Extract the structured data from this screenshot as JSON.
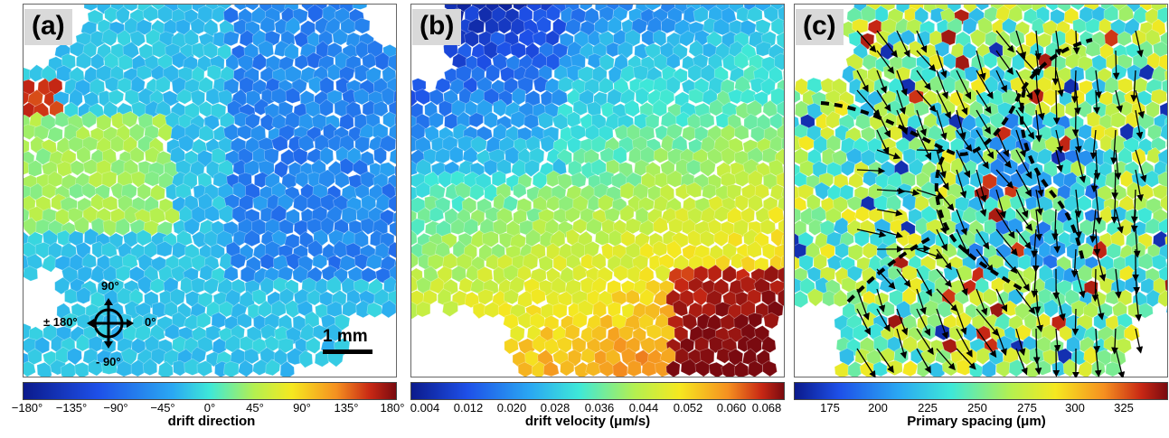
{
  "panels": [
    {
      "label": "(a)"
    },
    {
      "label": "(b)"
    },
    {
      "label": "(c)"
    }
  ],
  "compass": {
    "top": "90°",
    "left": "± 180°",
    "right": "0°",
    "bottom": "- 90°"
  },
  "scale_bar": {
    "label": "1 mm"
  },
  "colorbars": [
    {
      "label": "drift direction",
      "ticks": [
        "−180°",
        "−135°",
        "−90°",
        "−45°",
        "0°",
        "45°",
        "90°",
        "135°",
        "180°"
      ]
    },
    {
      "label": "drift velocity (μm/s)",
      "ticks": [
        "0.004",
        "0.012",
        "0.020",
        "0.028",
        "0.036",
        "0.044",
        "0.052",
        "0.060",
        "0.068"
      ]
    },
    {
      "label": "Primary spacing (μm)",
      "ticks": [
        "175",
        "200",
        "225",
        "250",
        "275",
        "300",
        "325"
      ]
    }
  ],
  "colormap": [
    "#0b1a8c",
    "#1e50e8",
    "#2aa8f2",
    "#3ee8d8",
    "#b4f050",
    "#f5e820",
    "#f59020",
    "#c82814",
    "#7a0a10"
  ]
}
